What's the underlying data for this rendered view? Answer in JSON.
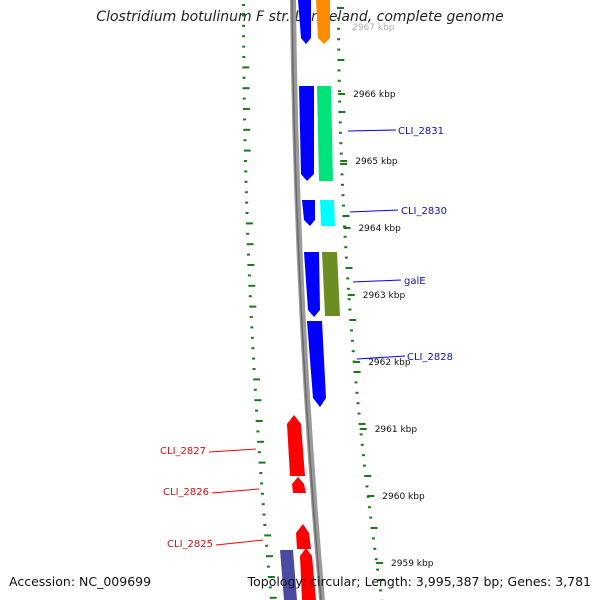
{
  "title": "Clostridium botulinum F str. Langeland, complete genome",
  "footer": {
    "accession": "Accession: NC_009699",
    "summary": "Topology: circular; Length: 3,995,387 bp; Genes: 3,781"
  },
  "scale": {
    "partial_top_label": "2967 kbp",
    "ticks": [
      "2966 kbp",
      "2965 kbp",
      "2964 kbp",
      "2963 kbp",
      "2962 kbp",
      "2961 kbp",
      "2960 kbp",
      "2959 kbp"
    ]
  },
  "genes": [
    {
      "name": "CLI_2831",
      "strand": "forward",
      "color": "#00e27a"
    },
    {
      "name": "CLI_2830",
      "strand": "forward",
      "color": "#00ffff"
    },
    {
      "name": "galE",
      "strand": "forward",
      "color": "#6b8e23"
    },
    {
      "name": "CLI_2828",
      "strand": "forward",
      "color": "#0000ff"
    },
    {
      "name": "CLI_2827",
      "strand": "reverse",
      "color": "#ff0000"
    },
    {
      "name": "CLI_2826",
      "strand": "reverse",
      "color": "#ff0000"
    },
    {
      "name": "CLI_2825",
      "strand": "reverse",
      "color": "#ff0000"
    }
  ],
  "colors": {
    "forward_cds": "#0000ff",
    "reverse_cds": "#ff0000",
    "orange_feature": "#ff8c00",
    "backbone": "#888888",
    "gc_ticks": "#1a7a1a",
    "navy_feature": "#4a4aa0"
  }
}
